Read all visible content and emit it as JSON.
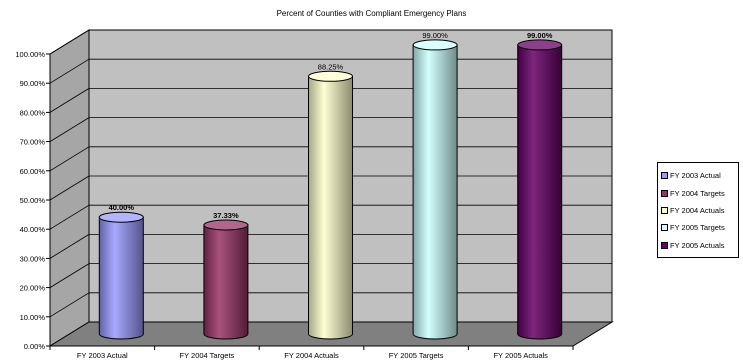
{
  "chart_data": {
    "type": "bar",
    "title": "Percent of Counties with Compliant Emergency Plans",
    "categories": [
      "FY 2003 Actual",
      "FY 2004 Targets",
      "FY 2004 Actuals",
      "FY 2005 Targets",
      "FY 2005 Actuals"
    ],
    "values": [
      40.0,
      37.33,
      88.25,
      99.0,
      99.0
    ],
    "value_labels": [
      "40.00%",
      "37.33%",
      "88.25%",
      "99.00%",
      "99.00%"
    ],
    "value_label_bold": [
      true,
      true,
      false,
      false,
      true
    ],
    "y_ticks": [
      "0.00%",
      "10.00%",
      "20.00%",
      "30.00%",
      "40.00%",
      "50.00%",
      "60.00%",
      "70.00%",
      "80.00%",
      "90.00%",
      "100.00%"
    ],
    "ylim": [
      0,
      100
    ],
    "legend": [
      "FY 2003 Actual",
      "FY 2004 Targets",
      "FY 2004 Actuals",
      "FY 2005 Targets",
      "FY 2005 Actuals"
    ],
    "legend_position": "right",
    "grid": true,
    "colors": [
      "#9999ff",
      "#993366",
      "#ffffcc",
      "#ccffff",
      "#660066"
    ],
    "bar_shape": "cylinder-3d"
  }
}
